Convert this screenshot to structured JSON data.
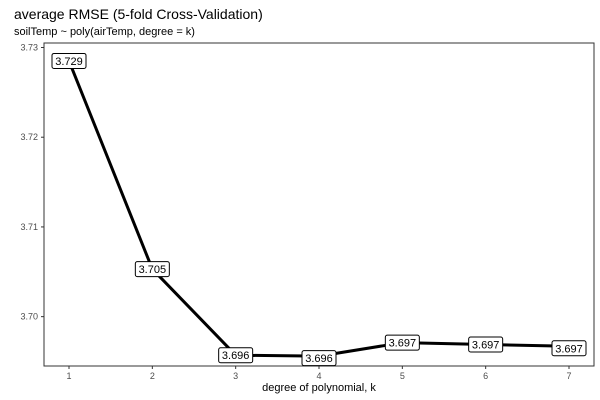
{
  "chart_data": {
    "type": "line",
    "title": "average RMSE (5-fold Cross-Validation)",
    "subtitle": "soilTemp ~ poly(airTemp, degree = k)",
    "xlabel": "degree of polynomial, k",
    "ylabel": "",
    "x": [
      1,
      2,
      3,
      4,
      5,
      6,
      7
    ],
    "values": [
      3.7285,
      3.7053,
      3.6957,
      3.6956,
      3.6971,
      3.6969,
      3.6967
    ],
    "data_labels": [
      "3.729",
      "3.705",
      "3.696",
      "3.696",
      "3.697",
      "3.697",
      "3.697"
    ],
    "x_ticks": [
      "1",
      "2",
      "3",
      "4",
      "5",
      "6",
      "7"
    ],
    "y_ticks": [
      "3.70",
      "3.71",
      "3.72",
      "3.73"
    ],
    "y_tick_values": [
      3.7,
      3.71,
      3.72,
      3.73
    ],
    "xlim": [
      0.7,
      7.3
    ],
    "ylim": [
      3.6945,
      3.7305
    ],
    "grid": false,
    "line_color": "#000000",
    "panel_border_color": "#333333"
  }
}
